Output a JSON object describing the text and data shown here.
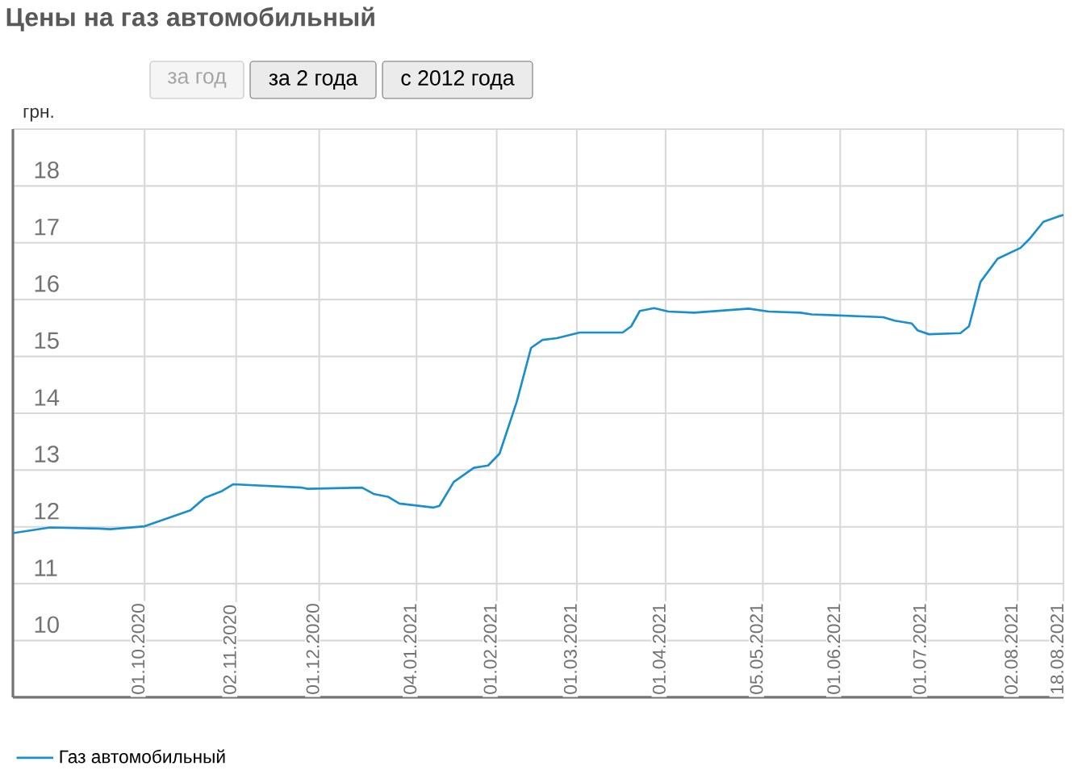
{
  "chart_data": {
    "type": "line",
    "title": "Цены на газ автомобильный",
    "ylabel": "грн.",
    "annotations": [
      "за год",
      "за 2 года",
      "с 2012 года"
    ],
    "series": [
      {
        "name": "Газ автомобильный",
        "color": "#1a8fd0",
        "x": [
          "2020-08-16",
          "2020-08-29",
          "2020-09-15",
          "2020-09-19",
          "2020-10-01",
          "2020-10-17",
          "2020-10-22",
          "2020-10-28",
          "2020-11-01",
          "2020-11-25",
          "2020-11-27",
          "2020-12-16",
          "2020-12-20",
          "2020-12-25",
          "2020-12-29",
          "2021-01-10",
          "2021-01-12",
          "2021-01-17",
          "2021-01-24",
          "2021-01-29",
          "2021-02-02",
          "2021-02-08",
          "2021-02-13",
          "2021-02-17",
          "2021-02-22",
          "2021-03-02",
          "2021-03-17",
          "2021-03-20",
          "2021-03-23",
          "2021-03-28",
          "2021-04-02",
          "2021-04-11",
          "2021-04-30",
          "2021-05-07",
          "2021-05-18",
          "2021-05-22",
          "2021-06-16",
          "2021-06-20",
          "2021-06-26",
          "2021-06-28",
          "2021-07-02",
          "2021-07-13",
          "2021-07-16",
          "2021-07-20",
          "2021-07-26",
          "2021-08-03",
          "2021-08-06",
          "2021-08-11",
          "2021-08-16",
          "2021-08-18"
        ],
        "values": [
          11.89,
          11.99,
          11.97,
          11.96,
          12.01,
          12.29,
          12.51,
          12.63,
          12.75,
          12.69,
          12.67,
          12.69,
          12.58,
          12.53,
          12.41,
          12.34,
          12.37,
          12.79,
          13.04,
          13.08,
          13.29,
          14.2,
          15.15,
          15.29,
          15.32,
          15.42,
          15.42,
          15.53,
          15.8,
          15.85,
          15.79,
          15.77,
          15.84,
          15.79,
          15.77,
          15.74,
          15.69,
          15.63,
          15.58,
          15.46,
          15.39,
          15.41,
          15.53,
          16.31,
          16.72,
          16.91,
          17.06,
          17.37,
          17.46,
          17.49
        ]
      }
    ],
    "xlim": [
      "2020-08-16",
      "2021-08-18"
    ],
    "xticks": [
      {
        "value": "2020-10-01",
        "label": "01.10.2020"
      },
      {
        "value": "2020-11-02",
        "label": "02.11.2020"
      },
      {
        "value": "2020-12-01",
        "label": "01.12.2020"
      },
      {
        "value": "2021-01-04",
        "label": "04.01.2021"
      },
      {
        "value": "2021-02-01",
        "label": "01.02.2021"
      },
      {
        "value": "2021-03-01",
        "label": "01.03.2021"
      },
      {
        "value": "2021-04-01",
        "label": "01.04.2021"
      },
      {
        "value": "2021-05-05",
        "label": "05.05.2021"
      },
      {
        "value": "2021-06-01",
        "label": "01.06.2021"
      },
      {
        "value": "2021-07-01",
        "label": "01.07.2021"
      },
      {
        "value": "2021-08-02",
        "label": "02.08.2021"
      },
      {
        "value": "2021-08-18",
        "label": "18.08.2021"
      }
    ],
    "ylim": [
      9,
      19
    ],
    "yticks": [
      10,
      11,
      12,
      13,
      14,
      15,
      16,
      17,
      18,
      {
        "value": 19,
        "label": null
      }
    ],
    "grid": true,
    "legend": "bottom left",
    "marker": "none",
    "line_style": "solid"
  }
}
